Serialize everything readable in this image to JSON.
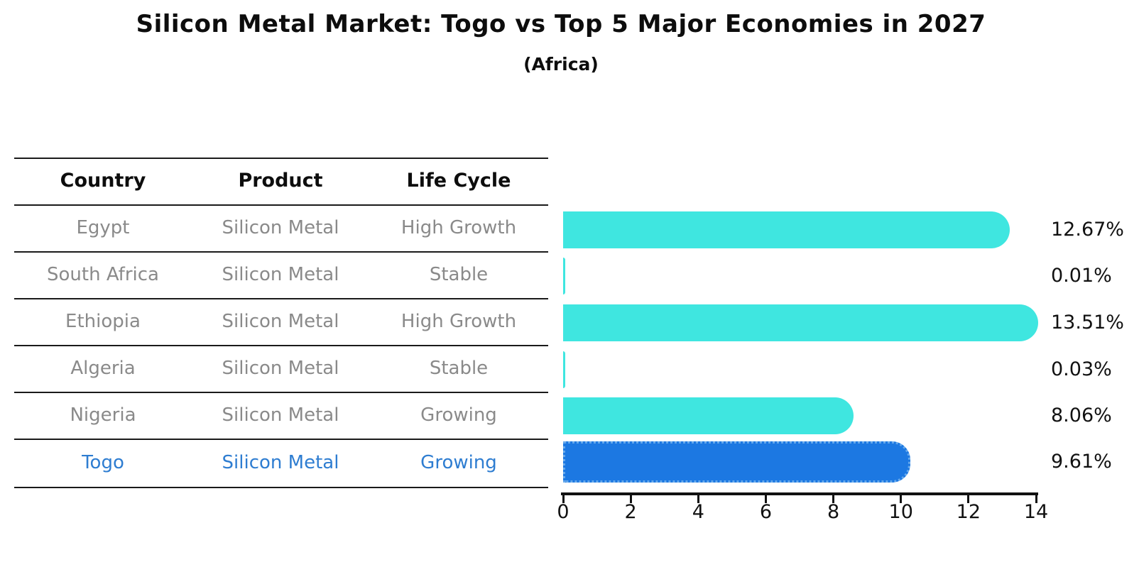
{
  "title": "Silicon Metal Market: Togo vs Top 5 Major Economies in 2027",
  "subtitle": "(Africa)",
  "table": {
    "headers": [
      "Country",
      "Product",
      "Life Cycle"
    ],
    "rows": [
      {
        "country": "Egypt",
        "product": "Silicon Metal",
        "life_cycle": "High Growth",
        "highlight": false
      },
      {
        "country": "South Africa",
        "product": "Silicon Metal",
        "life_cycle": "Stable",
        "highlight": false
      },
      {
        "country": "Ethiopia",
        "product": "Silicon Metal",
        "life_cycle": "High Growth",
        "highlight": false
      },
      {
        "country": "Algeria",
        "product": "Silicon Metal",
        "life_cycle": "Stable",
        "highlight": false
      },
      {
        "country": "Nigeria",
        "product": "Silicon Metal",
        "life_cycle": "Growing",
        "highlight": false
      },
      {
        "country": "Togo",
        "product": "Silicon Metal",
        "life_cycle": "Growing",
        "highlight": true
      }
    ]
  },
  "chart_data": {
    "type": "bar",
    "orientation": "horizontal",
    "title": "Silicon Metal Market: Togo vs Top 5 Major Economies in 2027",
    "subtitle": "(Africa)",
    "categories": [
      "Egypt",
      "South Africa",
      "Ethiopia",
      "Algeria",
      "Nigeria",
      "Togo"
    ],
    "values": [
      12.67,
      0.01,
      13.51,
      0.03,
      8.06,
      9.61
    ],
    "value_labels": [
      "12.67%",
      "0.01%",
      "13.51%",
      "0.03%",
      "8.06%",
      "9.61%"
    ],
    "highlight_index": 5,
    "xlabel": "",
    "ylabel": "",
    "xlim": [
      0,
      14
    ],
    "x_ticks": [
      0,
      2,
      4,
      6,
      8,
      10,
      12,
      14
    ],
    "grid": false,
    "legend": "none"
  },
  "colors": {
    "bar": "#3FE6E0",
    "highlight_bar": "#1C78E2",
    "highlight_border": "#66A9EC",
    "row_text": "#8A8A8A",
    "highlight_text": "#2E7DD1",
    "header_text": "#0d0d0d",
    "axis": "#111111"
  }
}
